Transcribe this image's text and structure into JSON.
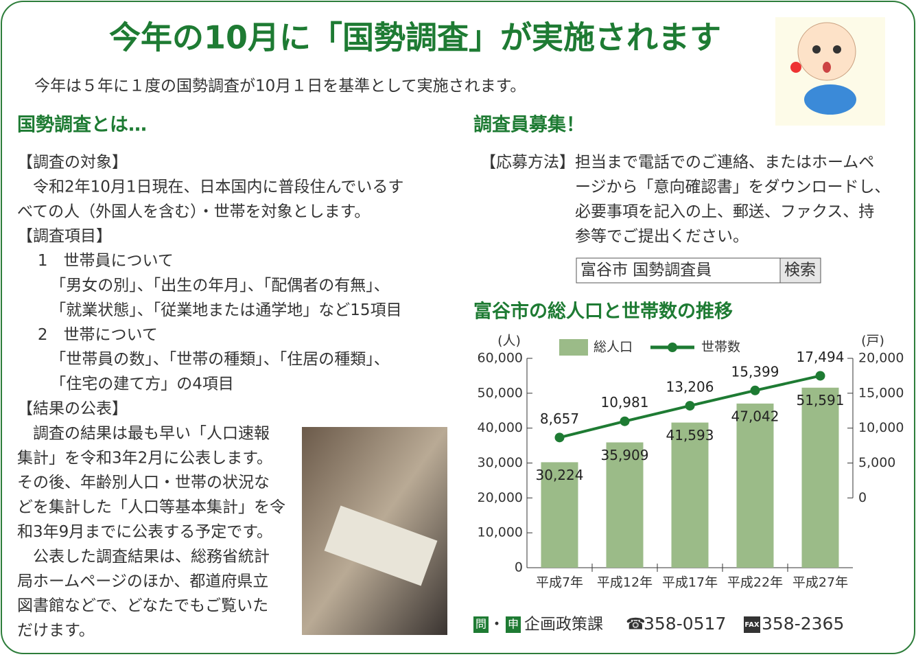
{
  "title": "今年の10月に「国勢調査」が実施されます",
  "intro": "今年は５年に１度の国勢調査が10月１日を基準として実施されます。",
  "left": {
    "heading": "国勢調査とは…",
    "lines": [
      "【調査の対象】",
      "令和2年10月1日現在、日本国内に普段住んでいるす",
      "べての人（外国人を含む）・世帯を対象とします。",
      "【調査項目】",
      "1　世帯員について",
      "「男女の別」、「出生の年月」、「配偶者の有無」、",
      "「就業状態」、「従業地または通学地」など15項目",
      "2　世帯について",
      "「世帯員の数」、「世帯の種類」、「住居の種類」、",
      "「住宅の建て方」の4項目",
      "【結果の公表】",
      "調査の結果は最も早い「人口速報",
      "集計」を令和3年2月に公表します。",
      "その後、年齢別人口・世帯の状況な",
      "どを集計した「人口等基本集計」を令",
      "和3年9月までに公表する予定です。",
      "公表した調査結果は、総務省統計",
      "局ホームページのほか、都道府県立",
      "図書館などで、どなたでもご覧いた",
      "だけます。"
    ]
  },
  "right": {
    "heading": "調査員募集！",
    "label": "【応募方法】",
    "lines": [
      "担当まで電話でのご連絡、またはホームペ",
      "ージから「意向確認書」をダウンロードし、",
      "必要事項を記入の上、郵送、ファクス、持",
      "参等でご提出ください。"
    ],
    "search": {
      "query": "富谷市 国勢調査員",
      "button": "検索"
    }
  },
  "chart_data": {
    "type": "bar",
    "title": "富谷市の総人口と世帯数の推移",
    "y_unit": "(人)",
    "y2_unit": "(戸)",
    "categories": [
      "平成7年",
      "平成12年",
      "平成17年",
      "平成22年",
      "平成27年"
    ],
    "series": [
      {
        "name": "総人口",
        "type": "bar",
        "color": "#9bbb88",
        "values": [
          30224,
          35909,
          41593,
          47042,
          51591
        ],
        "value_labels": [
          "30,224",
          "35,909",
          "41,593",
          "47,042",
          "51,591"
        ]
      },
      {
        "name": "世帯数",
        "type": "line",
        "axis": "y2",
        "color": "#1e7b33",
        "values": [
          8657,
          10981,
          13206,
          15399,
          17494
        ],
        "value_labels": [
          "8,657",
          "10,981",
          "13,206",
          "15,399",
          "17,494"
        ]
      }
    ],
    "ylim": [
      0,
      60000
    ],
    "yticks": [
      0,
      {
        "value": 10000,
        "label": "10,000"
      },
      {
        "value": 20000,
        "label": "20,000"
      },
      {
        "value": 30000,
        "label": "30,000"
      },
      {
        "value": 40000,
        "label": "40,000"
      },
      {
        "value": 50000,
        "label": "50,000"
      },
      {
        "value": 60000,
        "label": "60,000"
      }
    ],
    "y2lim": [
      -10000,
      20000
    ],
    "y2ticks": [
      0,
      {
        "value": 5000,
        "label": "5,000"
      },
      {
        "value": 10000,
        "label": "10,000"
      },
      {
        "value": 15000,
        "label": "15,000"
      },
      {
        "value": 20000,
        "label": "20,000"
      }
    ]
  },
  "footer": {
    "ask": "問",
    "separator": "・",
    "apply": "申",
    "dept": "企画政策課",
    "tel_icon": "☎",
    "tel": "358-0517",
    "fax_label": "FAX",
    "fax": "358-2365"
  }
}
